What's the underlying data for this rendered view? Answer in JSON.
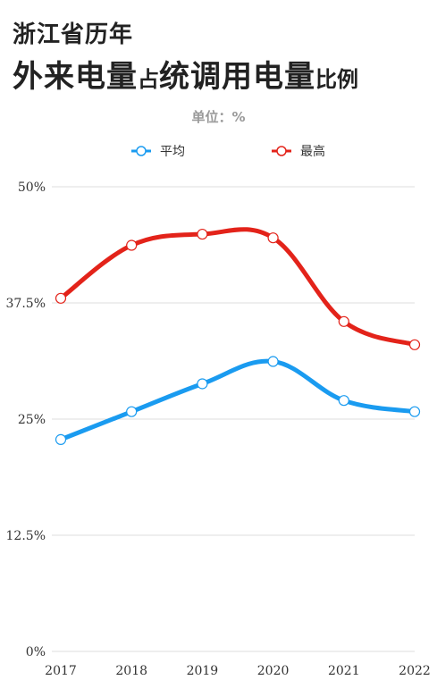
{
  "header": {
    "line1": "浙江省历年",
    "line2_big_a": "外来电量",
    "line2_small_a": "占",
    "line2_big_b": "统调用电量",
    "line2_small_b": "比例"
  },
  "unit_label": "单位：%",
  "colors": {
    "avg": "#1a9bf0",
    "max": "#e3231a",
    "grid": "#dddddd"
  },
  "chart_data": {
    "type": "line",
    "title": "浙江省历年外来电量占统调用电量比例",
    "ylabel": "单位：%",
    "xlabel": "",
    "categories": [
      "2017",
      "2018",
      "2019",
      "2020",
      "2021",
      "2022"
    ],
    "yticks": [
      "0%",
      "12.5%",
      "25%",
      "37.5%",
      "50%"
    ],
    "ylim": [
      0,
      50
    ],
    "grid": true,
    "legend_position": "top-center",
    "series": [
      {
        "name": "平均",
        "values": [
          22.8,
          25.8,
          28.8,
          31.2,
          27.0,
          25.8
        ]
      },
      {
        "name": "最高",
        "values": [
          38.0,
          43.7,
          44.9,
          44.5,
          35.5,
          33.0
        ]
      }
    ]
  }
}
